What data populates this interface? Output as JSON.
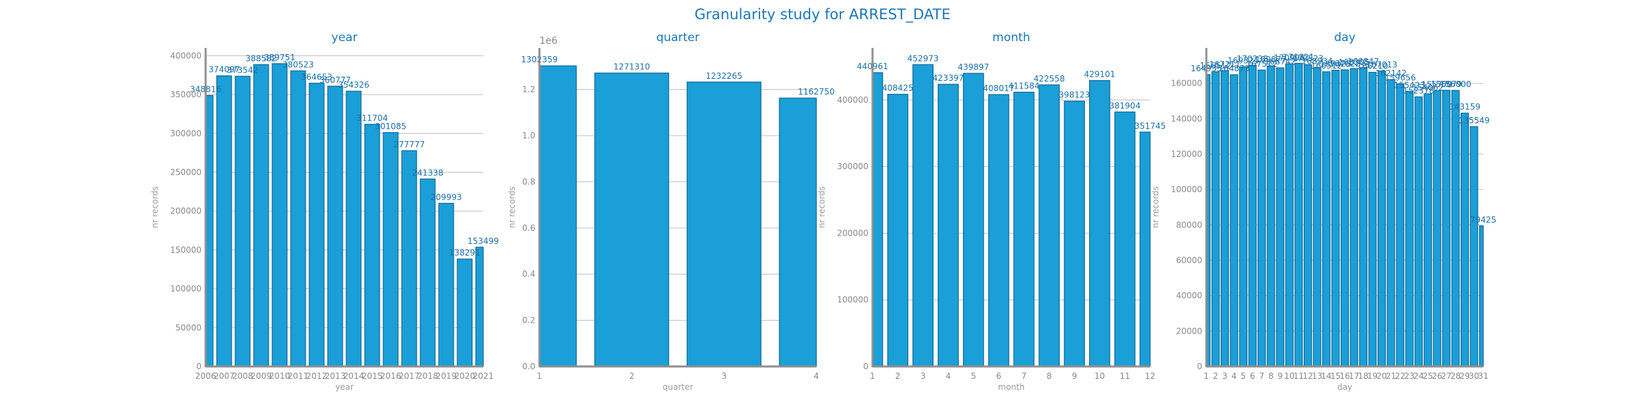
{
  "suptitle": "Granularity study for ARREST_DATE",
  "colors": {
    "bar": "#1a9fd8",
    "bar_edge": "#176d99",
    "title": "#1f77b4",
    "label": "#1a6fa8",
    "grid": "#c8c8c8",
    "spine": "#8f8f8f"
  },
  "chart_data": [
    {
      "type": "bar",
      "title": "year",
      "xlabel": "year",
      "ylabel": "nr records",
      "ylim": [
        0,
        410000
      ],
      "yticks": [
        0,
        50000,
        100000,
        150000,
        200000,
        250000,
        300000,
        350000,
        400000
      ],
      "ytick_labels": [
        "0",
        "50000",
        "100000",
        "150000",
        "200000",
        "250000",
        "300000",
        "350000",
        "400000"
      ],
      "multiplier": "",
      "grid": "y",
      "x": [
        2006,
        2007,
        2008,
        2009,
        2010,
        2011,
        2012,
        2013,
        2014,
        2015,
        2016,
        2017,
        2018,
        2019,
        2020,
        2021
      ],
      "xlim": [
        2006,
        2021
      ],
      "xticks": [
        2006,
        2007,
        2008,
        2009,
        2010,
        2011,
        2012,
        2013,
        2014,
        2015,
        2016,
        2017,
        2018,
        2019,
        2020,
        2021
      ],
      "xtick_labels": [
        "2006",
        "2007",
        "2008",
        "2009",
        "2010",
        "2011",
        "2012",
        "2013",
        "2014",
        "2015",
        "2016",
        "2017",
        "2018",
        "2019",
        "2020",
        "2021"
      ],
      "values": [
        348816,
        374097,
        373542,
        388582,
        389751,
        380523,
        364653,
        360777,
        354326,
        311704,
        301085,
        277777,
        241338,
        209993,
        138291,
        153499
      ],
      "value_labels": [
        "348816",
        "374097",
        "373542",
        "388582",
        "389751",
        "380523",
        "364653",
        "360777",
        "354326",
        "311704",
        "301085",
        "277777",
        "241338",
        "209993",
        "138291",
        "153499"
      ]
    },
    {
      "type": "bar",
      "title": "quarter",
      "xlabel": "quarter",
      "ylabel": "nr records",
      "ylim": [
        0,
        1380000
      ],
      "yticks": [
        0,
        200000,
        400000,
        600000,
        800000,
        1000000,
        1200000
      ],
      "ytick_labels": [
        "0.0",
        "0.2",
        "0.4",
        "0.6",
        "0.8",
        "1.0",
        "1.2"
      ],
      "multiplier": "1e6",
      "grid": "y",
      "x": [
        1,
        2,
        3,
        4
      ],
      "xlim": [
        1,
        4
      ],
      "xticks": [
        1,
        2,
        3,
        4
      ],
      "xtick_labels": [
        "1",
        "2",
        "3",
        "4"
      ],
      "values": [
        1302359,
        1271310,
        1232265,
        1162750
      ],
      "value_labels": [
        "1302359",
        "1271310",
        "1232265",
        "1162750"
      ]
    },
    {
      "type": "bar",
      "title": "month",
      "xlabel": "month",
      "ylabel": "nr records",
      "ylim": [
        0,
        478000
      ],
      "yticks": [
        0,
        100000,
        200000,
        300000,
        400000
      ],
      "ytick_labels": [
        "0",
        "100000",
        "200000",
        "300000",
        "400000"
      ],
      "multiplier": "",
      "grid": "y",
      "x": [
        1,
        2,
        3,
        4,
        5,
        6,
        7,
        8,
        9,
        10,
        11,
        12
      ],
      "xlim": [
        1,
        12
      ],
      "xticks": [
        1,
        2,
        3,
        4,
        5,
        6,
        7,
        8,
        9,
        10,
        11,
        12
      ],
      "xtick_labels": [
        "1",
        "2",
        "3",
        "4",
        "5",
        "6",
        "7",
        "8",
        "9",
        "10",
        "11",
        "12"
      ],
      "values": [
        440961,
        408425,
        452973,
        423397,
        439897,
        408017,
        411584,
        422558,
        398123,
        429101,
        381904,
        351745
      ],
      "value_labels": [
        "440961",
        "408425",
        "452973",
        "423397",
        "439897",
        "408017",
        "411584",
        "422558",
        "398123",
        "429101",
        "381904",
        "351745"
      ]
    },
    {
      "type": "bar",
      "title": "day",
      "xlabel": "day",
      "ylabel": "nr records",
      "ylim": [
        0,
        180000
      ],
      "yticks": [
        0,
        20000,
        40000,
        60000,
        80000,
        100000,
        120000,
        140000,
        160000
      ],
      "ytick_labels": [
        "0",
        "20000",
        "40000",
        "60000",
        "80000",
        "100000",
        "120000",
        "140000",
        "160000"
      ],
      "multiplier": "",
      "grid": "y",
      "x": [
        1,
        2,
        3,
        4,
        5,
        6,
        7,
        8,
        9,
        10,
        11,
        12,
        13,
        14,
        15,
        16,
        17,
        18,
        19,
        20,
        21,
        22,
        23,
        24,
        25,
        26,
        27,
        28,
        29,
        30,
        31
      ],
      "xlim": [
        1,
        31
      ],
      "xticks": [
        1,
        2,
        3,
        4,
        5,
        6,
        7,
        8,
        9,
        10,
        11,
        12,
        13,
        14,
        15,
        16,
        17,
        18,
        19,
        20,
        21,
        22,
        23,
        24,
        25,
        26,
        27,
        28,
        29,
        30,
        31
      ],
      "xtick_labels": [
        "1",
        "2",
        "3",
        "4",
        "5",
        "6",
        "7",
        "8",
        "9",
        "10",
        "11",
        "12",
        "13",
        "14",
        "15",
        "16",
        "17",
        "18",
        "19",
        "20",
        "21",
        "22",
        "23",
        "24",
        "25",
        "26",
        "27",
        "28",
        "29",
        "30",
        "31"
      ],
      "values": [
        164935,
        166512,
        167211,
        164873,
        169321,
        170238,
        167512,
        169877,
        168742,
        170996,
        171321,
        170523,
        168934,
        166512,
        167423,
        167622,
        168305,
        168847,
        166210,
        167013,
        162142,
        159656,
        155423,
        152378,
        154062,
        155779,
        156079,
        156000,
        143159,
        135549,
        79425
      ],
      "value_labels": [
        "164935",
        "166512",
        "167211",
        "164873",
        "169321",
        "170238",
        "167512",
        "169877",
        "168742",
        "170996",
        "171321",
        "170523",
        "168934",
        "166512",
        "167423",
        "167622",
        "168305",
        "168847",
        "166210",
        "167013",
        "162142",
        "159656",
        "155423",
        "152378",
        "154062",
        "155779",
        "156079",
        "156000",
        "143159",
        "135549",
        "79425"
      ]
    }
  ]
}
